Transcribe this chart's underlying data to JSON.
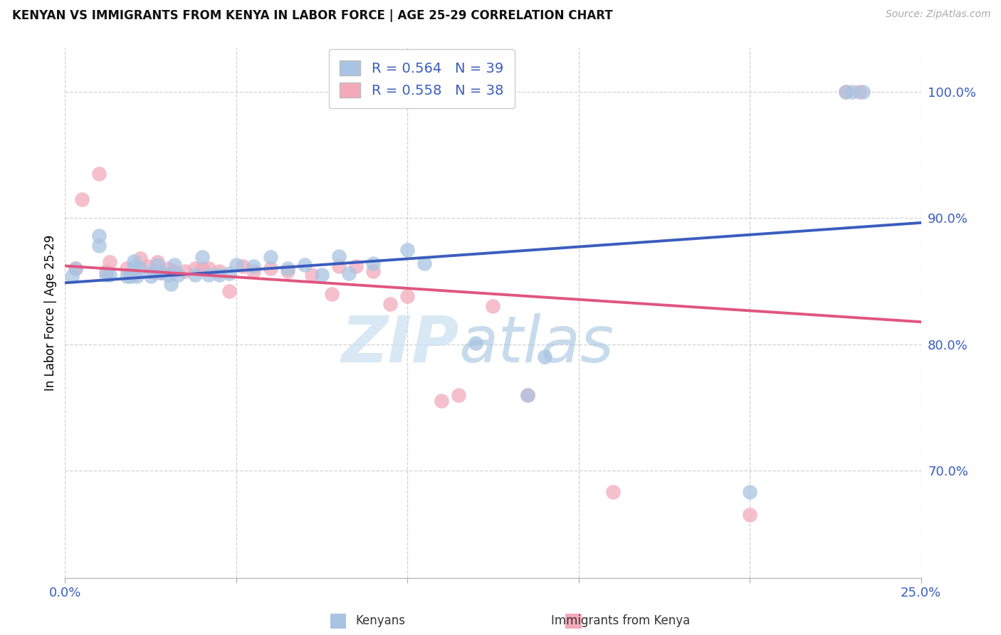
{
  "title": "KENYAN VS IMMIGRANTS FROM KENYA IN LABOR FORCE | AGE 25-29 CORRELATION CHART",
  "source_text": "Source: ZipAtlas.com",
  "ylabel": "In Labor Force | Age 25-29",
  "xlim": [
    0.0,
    0.25
  ],
  "ylim": [
    0.615,
    1.035
  ],
  "yticks": [
    0.7,
    0.8,
    0.9,
    1.0
  ],
  "ytick_labels": [
    "70.0%",
    "80.0%",
    "90.0%",
    "100.0%"
  ],
  "blue_R": 0.564,
  "blue_N": 39,
  "pink_R": 0.558,
  "pink_N": 38,
  "blue_color": "#a8c4e2",
  "pink_color": "#f2aabb",
  "line_blue": "#3a5dbe",
  "line_pink": "#e05580",
  "legend_text_color": "#3a5dbe",
  "watermark_zip": "ZIP",
  "watermark_atlas": "atlas",
  "blue_x": [
    0.002,
    0.003,
    0.01,
    0.01,
    0.012,
    0.013,
    0.018,
    0.019,
    0.02,
    0.02,
    0.021,
    0.022,
    0.025,
    0.026,
    0.027,
    0.028,
    0.03,
    0.031,
    0.032,
    0.033,
    0.038,
    0.04,
    0.042,
    0.045,
    0.048,
    0.05,
    0.055,
    0.06,
    0.065,
    0.07,
    0.075,
    0.08,
    0.083,
    0.09,
    0.1,
    0.105,
    0.12,
    0.135,
    0.14,
    0.2,
    0.228,
    0.23,
    0.233
  ],
  "blue_y": [
    0.854,
    0.86,
    0.878,
    0.886,
    0.855,
    0.855,
    0.854,
    0.854,
    0.861,
    0.866,
    0.854,
    0.86,
    0.854,
    0.858,
    0.863,
    0.857,
    0.855,
    0.848,
    0.863,
    0.855,
    0.855,
    0.869,
    0.855,
    0.855,
    0.856,
    0.863,
    0.862,
    0.869,
    0.86,
    0.863,
    0.855,
    0.87,
    0.856,
    0.864,
    0.875,
    0.864,
    0.801,
    0.76,
    0.79,
    0.683,
    1.0,
    1.0,
    1.0
  ],
  "pink_x": [
    0.003,
    0.005,
    0.01,
    0.012,
    0.013,
    0.018,
    0.02,
    0.022,
    0.024,
    0.026,
    0.027,
    0.028,
    0.03,
    0.032,
    0.035,
    0.038,
    0.04,
    0.042,
    0.045,
    0.048,
    0.052,
    0.055,
    0.06,
    0.065,
    0.072,
    0.078,
    0.08,
    0.085,
    0.09,
    0.095,
    0.1,
    0.11,
    0.115,
    0.125,
    0.135,
    0.16,
    0.2,
    0.228,
    0.232
  ],
  "pink_y": [
    0.86,
    0.915,
    0.935,
    0.858,
    0.865,
    0.86,
    0.855,
    0.868,
    0.862,
    0.857,
    0.865,
    0.857,
    0.86,
    0.858,
    0.858,
    0.86,
    0.86,
    0.86,
    0.858,
    0.842,
    0.862,
    0.858,
    0.86,
    0.858,
    0.855,
    0.84,
    0.862,
    0.862,
    0.858,
    0.832,
    0.838,
    0.755,
    0.76,
    0.83,
    0.76,
    0.683,
    0.665,
    1.0,
    1.0
  ]
}
